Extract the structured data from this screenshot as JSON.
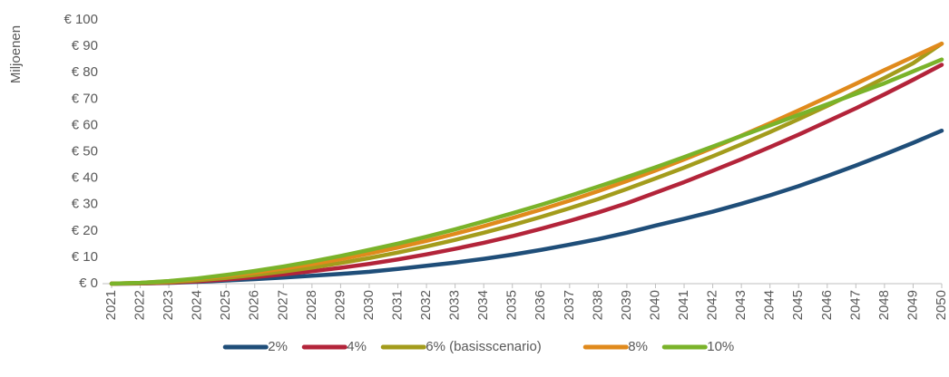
{
  "chart_data": {
    "type": "line",
    "y_label": "Miljoenen",
    "categories": [
      "2021",
      "2022",
      "2023",
      "2024",
      "2025",
      "2026",
      "2027",
      "2028",
      "2029",
      "2030",
      "2031",
      "2032",
      "2033",
      "2034",
      "2035",
      "2036",
      "2037",
      "2038",
      "2039",
      "2040",
      "2041",
      "2042",
      "2043",
      "2044",
      "2045",
      "2046",
      "2047",
      "2048",
      "2049",
      "2050"
    ],
    "series": [
      {
        "name": "2%",
        "color": "#1f4e79",
        "values": [
          0,
          0.1,
          0.3,
          0.7,
          1.2,
          1.7,
          2.3,
          3.0,
          3.7,
          4.5,
          5.6,
          6.8,
          8.0,
          9.4,
          11,
          12.8,
          14.8,
          16.9,
          19.3,
          22,
          24.6,
          27.3,
          30.3,
          33.5,
          37,
          40.8,
          44.8,
          49,
          53.4,
          58
        ]
      },
      {
        "name": "4%",
        "color": "#b3243a",
        "values": [
          0,
          0.1,
          0.4,
          0.9,
          1.6,
          2.5,
          3.5,
          4.7,
          6,
          7.5,
          9.2,
          11.1,
          13.2,
          15.5,
          18,
          20.8,
          23.8,
          27,
          30.5,
          34.5,
          38.5,
          42.8,
          47.2,
          51.8,
          56.5,
          61.5,
          66.5,
          71.8,
          77.3,
          83
        ]
      },
      {
        "name": "6% (basisscenario)",
        "color": "#a39c1c",
        "values": [
          0,
          0.2,
          0.6,
          1.3,
          2.2,
          3.3,
          4.6,
          6.1,
          7.8,
          9.7,
          11.8,
          14.1,
          16.6,
          19.3,
          22.2,
          25.3,
          28.6,
          32.1,
          35.9,
          39.9,
          44,
          48.3,
          52.8,
          57.5,
          62.4,
          67.4,
          72.6,
          78,
          83.6,
          91
        ]
      },
      {
        "name": "8%",
        "color": "#e08a1c",
        "values": [
          0,
          0.3,
          0.9,
          1.8,
          2.9,
          4.2,
          5.7,
          7.4,
          9.3,
          11.4,
          13.7,
          16.2,
          18.9,
          21.8,
          24.9,
          28.1,
          31.5,
          35.1,
          38.9,
          42.9,
          47.1,
          51.5,
          56.1,
          60.8,
          65.7,
          70.7,
          75.8,
          81,
          86,
          91
        ]
      },
      {
        "name": "10%",
        "color": "#7ab32a",
        "values": [
          0,
          0.3,
          1.0,
          2.0,
          3.3,
          4.8,
          6.5,
          8.4,
          10.5,
          12.8,
          15.2,
          17.8,
          20.6,
          23.6,
          26.7,
          29.9,
          33.3,
          36.8,
          40.4,
          44.1,
          48,
          52,
          56,
          60,
          64,
          68,
          72,
          76,
          80.5,
          85
        ]
      }
    ],
    "ylim": [
      0,
      100
    ],
    "yticks": [
      {
        "value": 0,
        "label": "€ 0"
      },
      {
        "value": 10,
        "label": "€ 10"
      },
      {
        "value": 20,
        "label": "€ 20"
      },
      {
        "value": 30,
        "label": "€ 30"
      },
      {
        "value": 40,
        "label": "€ 40"
      },
      {
        "value": 50,
        "label": "€ 50"
      },
      {
        "value": 60,
        "label": "€ 60"
      },
      {
        "value": 70,
        "label": "€ 70"
      },
      {
        "value": 80,
        "label": "€ 80"
      },
      {
        "value": 90,
        "label": "€ 90"
      },
      {
        "value": 100,
        "label": "€ 100"
      }
    ],
    "grid": false,
    "legend": "bottom"
  }
}
